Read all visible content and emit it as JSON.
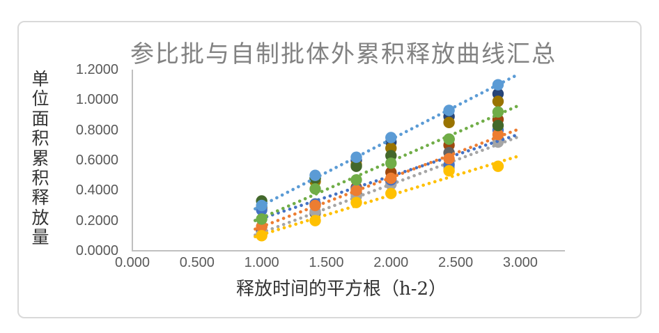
{
  "chart_data": {
    "type": "scatter",
    "title": "参比批与自制批体外累积释放曲线汇总",
    "xlabel": "释放时间的平方根（h-2）",
    "ylabel": "单位面积累积释放量",
    "legend": "none",
    "grid": false,
    "xlim": [
      0,
      3.34
    ],
    "ylim": [
      0,
      1.2
    ],
    "x_ticks": [
      "0.000",
      "0.500",
      "1.000",
      "1.500",
      "2.000",
      "2.500",
      "3.000"
    ],
    "y_ticks": [
      "0.0000",
      "0.2000",
      "0.4000",
      "0.6000",
      "0.8000",
      "1.0000",
      "1.2000"
    ],
    "x": [
      1.0,
      1.414,
      1.732,
      2.0,
      2.449,
      2.828
    ],
    "trendline_x_range": [
      0.95,
      2.97
    ],
    "series": [
      {
        "name": "navy",
        "color": "#264478",
        "values": [
          0.29,
          0.48,
          0.6,
          0.72,
          0.89,
          1.04
        ],
        "trendline": null
      },
      {
        "name": "dark-yellow",
        "color": "#997300",
        "values": [
          0.28,
          0.46,
          0.57,
          0.68,
          0.85,
          0.99
        ],
        "trendline": null
      },
      {
        "name": "dark-red",
        "color": "#9E480E",
        "values": [
          0.16,
          0.31,
          0.42,
          0.52,
          0.7,
          0.87
        ],
        "trendline": null
      },
      {
        "name": "dark-gray",
        "color": "#636363",
        "values": [
          0.13,
          0.25,
          0.38,
          0.46,
          0.65,
          0.74
        ],
        "trendline": null
      },
      {
        "name": "gray",
        "color": "#A5A5A5",
        "values": [
          0.11,
          0.26,
          0.36,
          0.44,
          0.55,
          0.72
        ],
        "trendline": {
          "slope": 0.32,
          "intercept": -0.2
        }
      },
      {
        "name": "blue",
        "color": "#4472C4",
        "values": [
          0.27,
          0.31,
          0.41,
          0.47,
          0.57,
          0.8
        ],
        "trendline": {
          "slope": 0.28,
          "intercept": -0.065
        }
      },
      {
        "name": "orange",
        "color": "#ED7D31",
        "values": [
          0.16,
          0.3,
          0.4,
          0.48,
          0.61,
          0.77
        ],
        "trendline": {
          "slope": 0.325,
          "intercept": -0.165
        }
      },
      {
        "name": "dark-green",
        "color": "#43682B",
        "values": [
          0.33,
          0.48,
          0.56,
          0.63,
          0.74,
          0.83
        ],
        "trendline": null
      },
      {
        "name": "green",
        "color": "#70AD47",
        "values": [
          0.21,
          0.41,
          0.47,
          0.58,
          0.74,
          0.92
        ],
        "trendline": {
          "slope": 0.374,
          "intercept": -0.155
        }
      },
      {
        "name": "light-blue",
        "color": "#5B9BD5",
        "values": [
          0.3,
          0.5,
          0.62,
          0.75,
          0.93,
          1.1
        ],
        "trendline": {
          "slope": 0.438,
          "intercept": -0.138
        }
      },
      {
        "name": "yellow",
        "color": "#FFC000",
        "values": [
          0.1,
          0.2,
          0.32,
          0.38,
          0.53,
          0.56
        ],
        "trendline": {
          "slope": 0.262,
          "intercept": -0.155
        }
      }
    ],
    "axis_color": "#BFBFBF",
    "title_color": "#828282",
    "tick_color": "#595959"
  }
}
